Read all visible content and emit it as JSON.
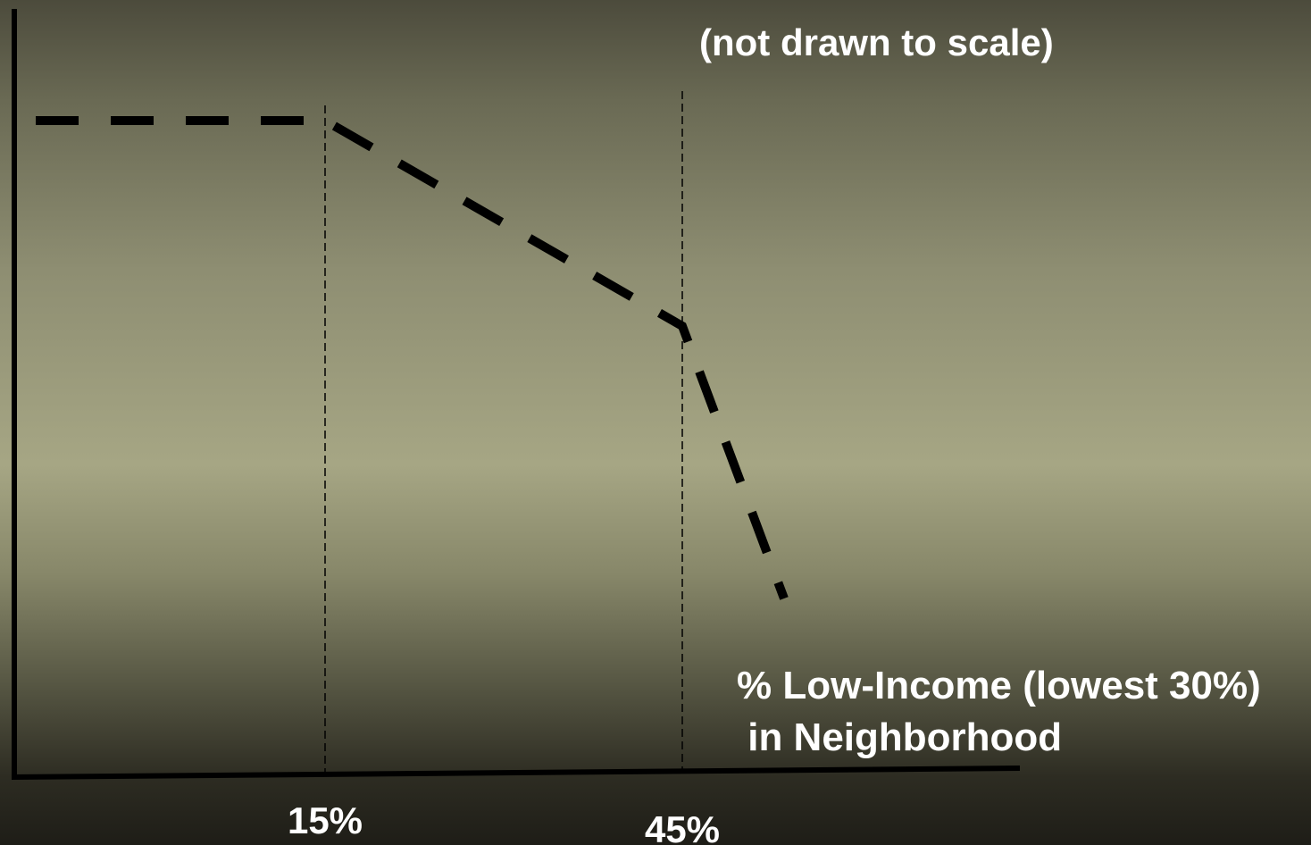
{
  "chart_data": {
    "type": "line",
    "title": "(not drawn to scale)",
    "xlabel": [
      "% Low-Income (lowest 30%)",
      " in Neighborhood"
    ],
    "ylabel": "",
    "x_ticks": [
      "15%",
      "45%"
    ],
    "reference_lines_x": [
      15,
      45
    ],
    "series": [
      {
        "style": "dashed",
        "points": [
          {
            "x": 0,
            "y": 1.0
          },
          {
            "x": 15,
            "y": 1.0
          },
          {
            "x": 45,
            "y": 0.57
          },
          {
            "x": 54,
            "y": 0.0
          }
        ]
      }
    ],
    "grid": false
  },
  "colors": {
    "line": "#000000",
    "text": "#ffffff"
  }
}
